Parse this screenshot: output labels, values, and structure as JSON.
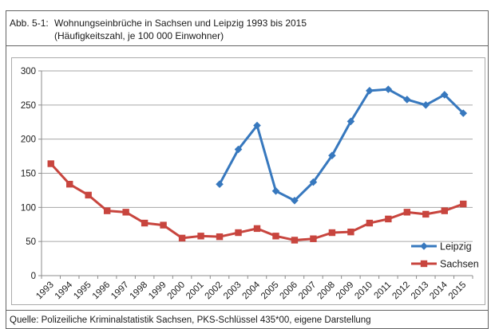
{
  "figure": {
    "label": "Abb. 5-1:",
    "title_line1": "Wohnungseinbrüche in Sachsen und Leipzig 1993 bis 2015",
    "title_line2": "(Häufigkeitszahl, je 100 000 Einwohner)",
    "source": "Quelle: Polizeiliche Kriminalstatistik Sachsen, PKS-Schlüssel 435*00, eigene Darstellung"
  },
  "chart_data": {
    "type": "line",
    "title": "Wohnungseinbrüche in Sachsen und Leipzig 1993 bis 2015 (Häufigkeitszahl, je 100 000 Einwohner)",
    "categories": [
      "1993",
      "1994",
      "1995",
      "1996",
      "1997",
      "1998",
      "1999",
      "2000",
      "2001",
      "2002",
      "2003",
      "2004",
      "2005",
      "2006",
      "2007",
      "2008",
      "2009",
      "2010",
      "2011",
      "2012",
      "2013",
      "2014",
      "2015"
    ],
    "series": [
      {
        "name": "Leipzig",
        "color": "#3778be",
        "marker": "diamond",
        "values": [
          null,
          null,
          null,
          null,
          null,
          null,
          null,
          null,
          null,
          134,
          185,
          220,
          124,
          110,
          137,
          176,
          226,
          271,
          273,
          258,
          250,
          265,
          238
        ]
      },
      {
        "name": "Sachsen",
        "color": "#c8453e",
        "marker": "square",
        "values": [
          164,
          134,
          118,
          95,
          93,
          77,
          74,
          55,
          58,
          57,
          63,
          69,
          58,
          52,
          54,
          63,
          64,
          77,
          83,
          93,
          90,
          95,
          105
        ]
      }
    ],
    "xlabel": "",
    "ylabel": "",
    "ylim": [
      0,
      300
    ],
    "ytick_step": 50,
    "grid": true,
    "legend_position": "inside-bottom-right",
    "colors": {
      "gridline": "#a6a6a6",
      "axis": "#8c8c8c",
      "tick_label": "#1a1a1a"
    }
  }
}
